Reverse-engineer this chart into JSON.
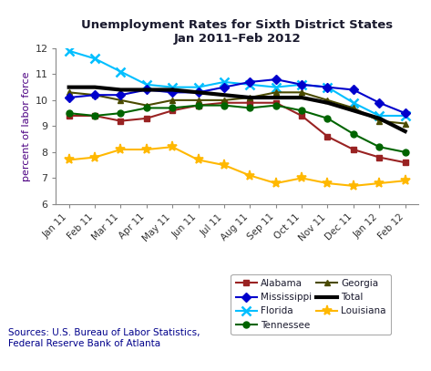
{
  "title_line1": "Unemployment Rates for Sixth District States",
  "title_line2": "Jan 2011–Feb 2012",
  "ylabel": "percent of labor force",
  "source_text": "Sources: U.S. Bureau of Labor Statistics,\nFederal Reserve Bank of Atlanta",
  "x_labels": [
    "Jan 11",
    "Feb 11",
    "Mar 11",
    "Apr 11",
    "May 11",
    "Jun 11",
    "Jul 11",
    "Aug 11",
    "Sep 11",
    "Oct 11",
    "Nov 11",
    "Dec 11",
    "Jan 12",
    "Feb 12"
  ],
  "ylim": [
    6,
    12
  ],
  "yticks": [
    6,
    7,
    8,
    9,
    10,
    11,
    12
  ],
  "series": {
    "Alabama": {
      "values": [
        9.4,
        9.4,
        9.2,
        9.3,
        9.6,
        9.8,
        9.9,
        9.9,
        9.9,
        9.4,
        8.6,
        8.1,
        7.8,
        7.6
      ],
      "color": "#992222",
      "marker": "s",
      "linewidth": 1.5,
      "markersize": 5
    },
    "Florida": {
      "values": [
        11.9,
        11.6,
        11.1,
        10.6,
        10.5,
        10.5,
        10.7,
        10.6,
        10.5,
        10.6,
        10.5,
        9.9,
        9.4,
        9.4
      ],
      "color": "#00BFFF",
      "marker": "x",
      "linewidth": 1.5,
      "markersize": 7
    },
    "Georgia": {
      "values": [
        10.3,
        10.2,
        10.0,
        9.8,
        10.0,
        10.0,
        10.0,
        10.1,
        10.3,
        10.3,
        10.0,
        9.7,
        9.2,
        9.1
      ],
      "color": "#4A4A00",
      "marker": "^",
      "linewidth": 1.5,
      "markersize": 5
    },
    "Louisiana": {
      "values": [
        7.7,
        7.8,
        8.1,
        8.1,
        8.2,
        7.7,
        7.5,
        7.1,
        6.8,
        7.0,
        6.8,
        6.7,
        6.8,
        6.9
      ],
      "color": "#FFB800",
      "marker": "*",
      "linewidth": 1.5,
      "markersize": 8
    },
    "Mississippi": {
      "values": [
        10.1,
        10.2,
        10.2,
        10.4,
        10.3,
        10.3,
        10.5,
        10.7,
        10.8,
        10.6,
        10.5,
        10.4,
        9.9,
        9.5
      ],
      "color": "#0000CC",
      "marker": "D",
      "linewidth": 1.5,
      "markersize": 5
    },
    "Tennessee": {
      "values": [
        9.5,
        9.4,
        9.5,
        9.7,
        9.7,
        9.8,
        9.8,
        9.7,
        9.8,
        9.6,
        9.3,
        8.7,
        8.2,
        8.0
      ],
      "color": "#006400",
      "marker": "o",
      "linewidth": 1.5,
      "markersize": 5
    },
    "Total": {
      "values": [
        10.5,
        10.5,
        10.4,
        10.4,
        10.4,
        10.3,
        10.2,
        10.1,
        10.1,
        10.1,
        9.9,
        9.6,
        9.3,
        8.8
      ],
      "color": "#000000",
      "marker": "None",
      "linewidth": 3.0,
      "markersize": 0
    }
  },
  "legend_order": [
    "Alabama",
    "Mississippi",
    "Florida",
    "Tennessee",
    "Georgia",
    "Total",
    "Louisiana"
  ],
  "ylabel_color": "#4B0082",
  "title_color": "#1a1a2e",
  "background_color": "#FFFFFF",
  "plot_bg_color": "#FFFFFF",
  "source_color": "#00008B",
  "tick_label_color": "#333333"
}
